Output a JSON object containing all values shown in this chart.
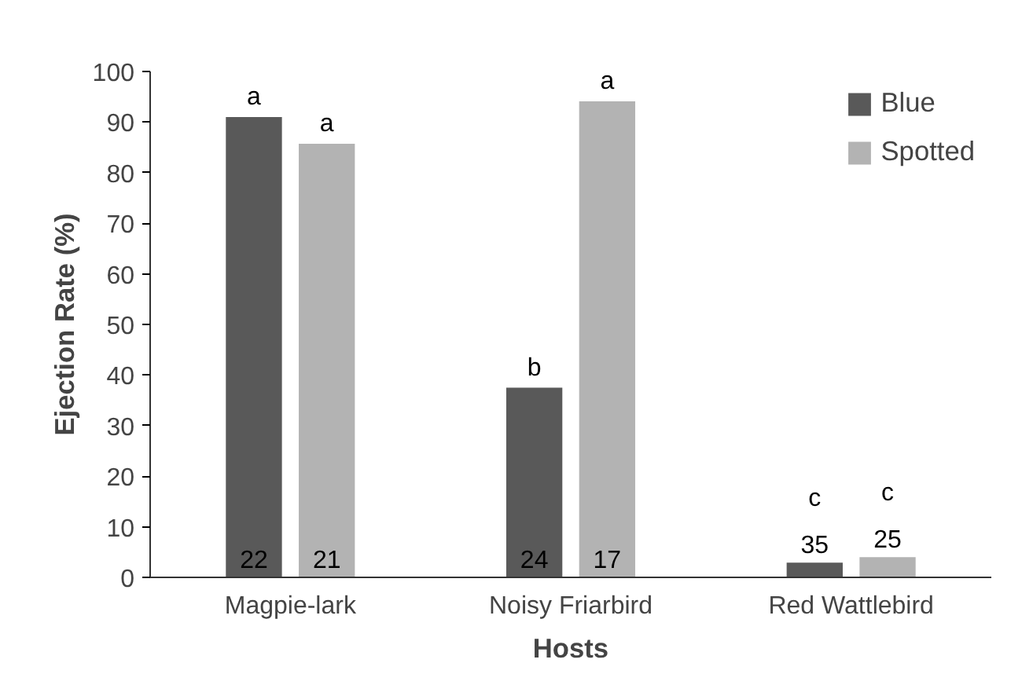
{
  "chart_data": {
    "type": "bar",
    "xlabel": "Hosts",
    "ylabel": "Ejection Rate (%)",
    "categories": [
      "Magpie-lark",
      "Noisy Friarbird",
      "Red Wattlebird"
    ],
    "series": [
      {
        "name": "Blue",
        "color": "#595959",
        "values": [
          91,
          37.5,
          2.9
        ]
      },
      {
        "name": "Spotted",
        "color": "#b3b3b3",
        "values": [
          85.7,
          94.1,
          4
        ]
      }
    ],
    "ylim": [
      0,
      100
    ],
    "yticks": [
      0,
      10,
      20,
      30,
      40,
      50,
      60,
      70,
      80,
      90,
      100
    ],
    "grid": false,
    "legend": "top right",
    "annotations": [
      "a",
      "a",
      "b",
      "a",
      "c",
      "c",
      "22",
      "21",
      "24",
      "17",
      "35",
      "25"
    ]
  }
}
